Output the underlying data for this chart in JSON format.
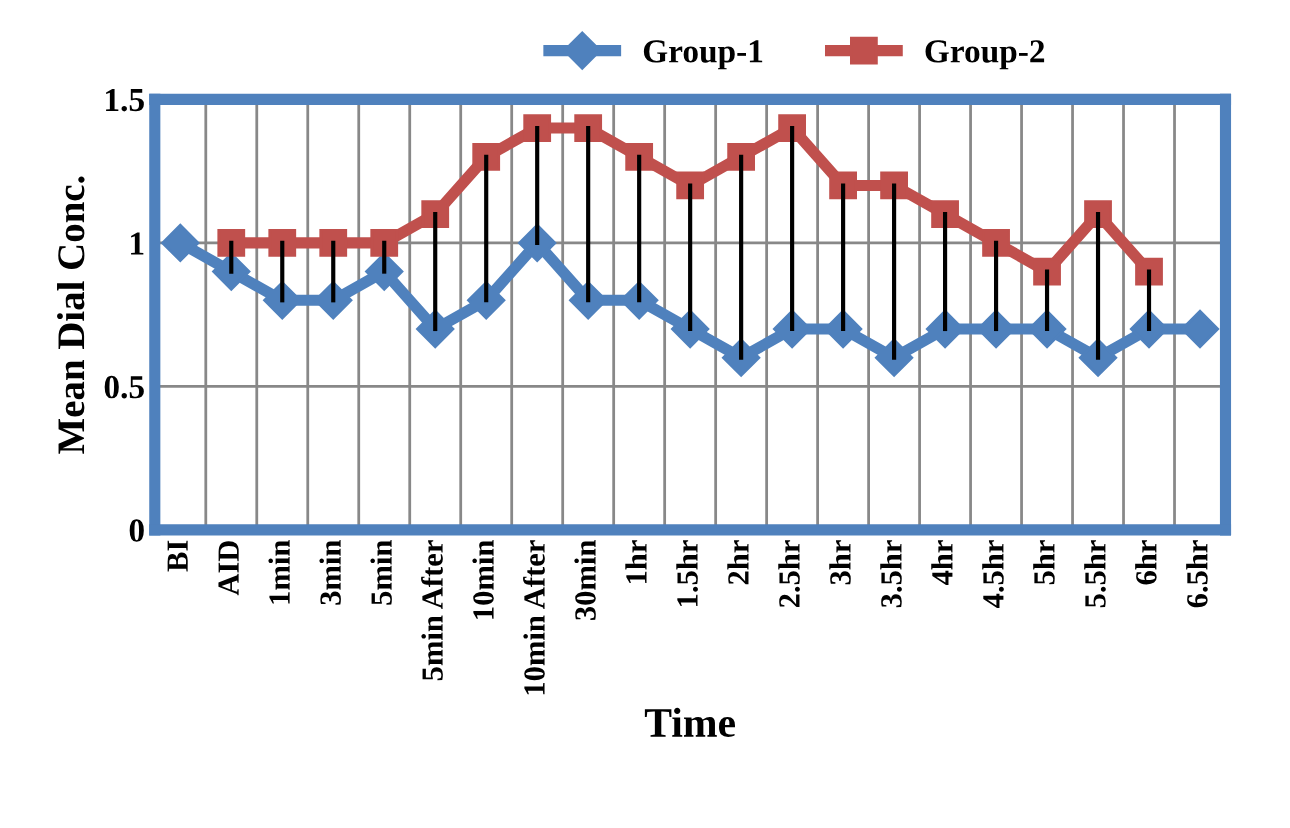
{
  "chart_data": {
    "type": "line",
    "xlabel": "Time",
    "ylabel": "Mean Dial Conc.",
    "categories": [
      "BI",
      "AID",
      "1min",
      "3min",
      "5min",
      "5min After",
      "10min",
      "10min After",
      "30min",
      "1hr",
      "1.5hr",
      "2hr",
      "2.5hr",
      "3hr",
      "3.5hr",
      "4hr",
      "4.5hr",
      "5hr",
      "5.5hr",
      "6hr",
      "6.5hr"
    ],
    "series": [
      {
        "name": "Group-1",
        "color": "#4f81bd",
        "marker": "diamond",
        "values": [
          1,
          0.9,
          0.8,
          0.8,
          0.9,
          0.7,
          0.8,
          1,
          0.8,
          0.8,
          0.7,
          0.6,
          0.7,
          0.7,
          0.6,
          0.7,
          0.7,
          0.7,
          0.6,
          0.7,
          0.7
        ],
        "errors": [
          null,
          [
            0.9,
            1
          ],
          [
            0.8,
            1
          ],
          [
            0.8,
            1
          ],
          [
            0.9,
            1
          ],
          [
            0.7,
            1.1
          ],
          [
            0.8,
            1.3
          ],
          [
            1,
            1.4
          ],
          [
            0.8,
            1.4
          ],
          [
            0.8,
            1.3
          ],
          [
            0.7,
            1.2
          ],
          [
            0.6,
            1.3
          ],
          [
            0.7,
            1.4
          ],
          [
            0.7,
            1.2
          ],
          [
            0.6,
            1.2
          ],
          [
            0.7,
            1.1
          ],
          [
            0.7,
            1
          ],
          [
            0.7,
            0.9
          ],
          [
            0.6,
            1.1
          ],
          [
            0.7,
            0.9
          ],
          null
        ]
      },
      {
        "name": "Group-2",
        "color": "#c0504d",
        "marker": "square",
        "values": [
          null,
          1,
          1,
          1,
          1,
          1.1,
          1.3,
          1.4,
          1.4,
          1.3,
          1.2,
          1.3,
          1.4,
          1.2,
          1.2,
          1.1,
          1,
          0.9,
          1.1,
          0.9,
          null
        ]
      }
    ],
    "ylim": [
      0,
      1.5
    ],
    "yticks": [
      0,
      0.5,
      1,
      1.5
    ],
    "grid": true,
    "legend": "top"
  }
}
